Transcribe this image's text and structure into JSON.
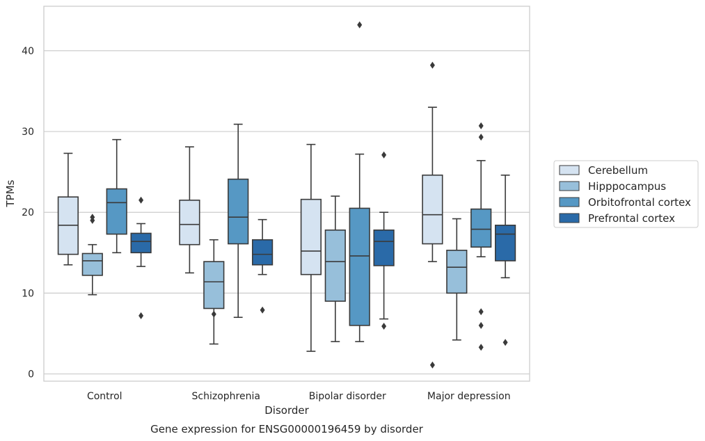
{
  "chart_data": {
    "type": "box",
    "xlabel": "Disorder",
    "ylabel": "TPMs",
    "caption": "Gene expression for ENSG00000196459 by disorder",
    "ylim": [
      -0.9,
      45.5
    ],
    "yticks": [
      0,
      10,
      20,
      30,
      40
    ],
    "grid": "horizontal",
    "legend_position": "right",
    "categories": [
      "Control",
      "Schizophrenia",
      "Bipolar disorder",
      "Major depression"
    ],
    "series": [
      {
        "name": "Cerebellum",
        "color": "#d5e3f1",
        "boxes": [
          {
            "whislo": 13.5,
            "q1": 14.8,
            "med": 18.4,
            "q3": 21.9,
            "whishi": 27.3,
            "fliers": []
          },
          {
            "whislo": 12.5,
            "q1": 16.0,
            "med": 18.5,
            "q3": 21.5,
            "whishi": 28.1,
            "fliers": []
          },
          {
            "whislo": 2.8,
            "q1": 12.3,
            "med": 15.2,
            "q3": 21.6,
            "whishi": 28.4,
            "fliers": []
          },
          {
            "whislo": 13.9,
            "q1": 16.1,
            "med": 19.7,
            "q3": 24.6,
            "whishi": 33.0,
            "fliers": [
              38.2,
              1.1
            ]
          }
        ]
      },
      {
        "name": "Hipppocampus",
        "color": "#97bfda",
        "boxes": [
          {
            "whislo": 9.8,
            "q1": 12.2,
            "med": 14.0,
            "q3": 14.9,
            "whishi": 16.0,
            "fliers": [
              19.0,
              19.4
            ]
          },
          {
            "whislo": 3.7,
            "q1": 8.1,
            "med": 11.4,
            "q3": 13.9,
            "whishi": 16.6,
            "fliers": [
              7.4
            ]
          },
          {
            "whislo": 4.0,
            "q1": 9.0,
            "med": 13.9,
            "q3": 17.8,
            "whishi": 22.0,
            "fliers": []
          },
          {
            "whislo": 4.2,
            "q1": 10.0,
            "med": 13.2,
            "q3": 15.3,
            "whishi": 19.2,
            "fliers": []
          }
        ]
      },
      {
        "name": "Orbitofrontal cortex",
        "color": "#5698c4",
        "boxes": [
          {
            "whislo": 15.0,
            "q1": 17.3,
            "med": 21.2,
            "q3": 22.9,
            "whishi": 29.0,
            "fliers": []
          },
          {
            "whislo": 7.0,
            "q1": 16.1,
            "med": 19.4,
            "q3": 24.1,
            "whishi": 30.9,
            "fliers": []
          },
          {
            "whislo": 4.0,
            "q1": 6.0,
            "med": 14.6,
            "q3": 20.5,
            "whishi": 27.2,
            "fliers": [
              43.2
            ]
          },
          {
            "whislo": 14.5,
            "q1": 15.7,
            "med": 17.9,
            "q3": 20.4,
            "whishi": 26.4,
            "fliers": [
              30.7,
              29.3,
              7.7,
              6.0,
              3.3
            ]
          }
        ]
      },
      {
        "name": "Prefrontal cortex",
        "color": "#2a6aa8",
        "boxes": [
          {
            "whislo": 13.3,
            "q1": 15.0,
            "med": 16.4,
            "q3": 17.4,
            "whishi": 18.6,
            "fliers": [
              21.5,
              7.2
            ]
          },
          {
            "whislo": 12.3,
            "q1": 13.5,
            "med": 14.8,
            "q3": 16.6,
            "whishi": 19.1,
            "fliers": [
              7.9
            ]
          },
          {
            "whislo": 6.8,
            "q1": 13.4,
            "med": 16.4,
            "q3": 17.8,
            "whishi": 20.0,
            "fliers": [
              27.1,
              5.9
            ]
          },
          {
            "whislo": 11.9,
            "q1": 14.0,
            "med": 17.3,
            "q3": 18.4,
            "whishi": 24.6,
            "fliers": [
              3.9
            ]
          }
        ]
      }
    ]
  }
}
